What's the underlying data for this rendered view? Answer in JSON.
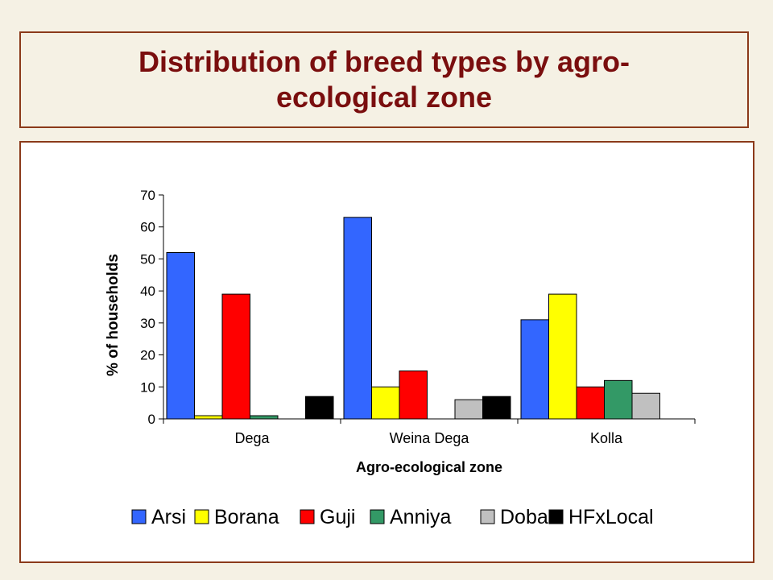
{
  "title": "Distribution of breed types by agro-ecological zone",
  "chart_data": {
    "type": "bar",
    "categories": [
      "Dega",
      "Weina Dega",
      "Kolla"
    ],
    "series": [
      {
        "name": "Arsi",
        "color": "#3366ff",
        "values": [
          52,
          63,
          31
        ]
      },
      {
        "name": "Borana",
        "color": "#ffff00",
        "values": [
          1,
          10,
          39
        ]
      },
      {
        "name": "Guji",
        "color": "#ff0000",
        "values": [
          39,
          15,
          10
        ]
      },
      {
        "name": "Anniya",
        "color": "#339966",
        "values": [
          1,
          0,
          12
        ]
      },
      {
        "name": "Doba",
        "color": "#c0c0c0",
        "values": [
          0,
          6,
          8
        ]
      },
      {
        "name": "HFxLocal",
        "color": "#000000",
        "values": [
          7,
          7,
          0
        ]
      }
    ],
    "xlabel": "Agro-ecological zone",
    "ylabel": "% of households",
    "ylim": [
      0,
      70
    ],
    "yticks": [
      0,
      10,
      20,
      30,
      40,
      50,
      60,
      70
    ],
    "grid": false,
    "legend": "bottom"
  }
}
